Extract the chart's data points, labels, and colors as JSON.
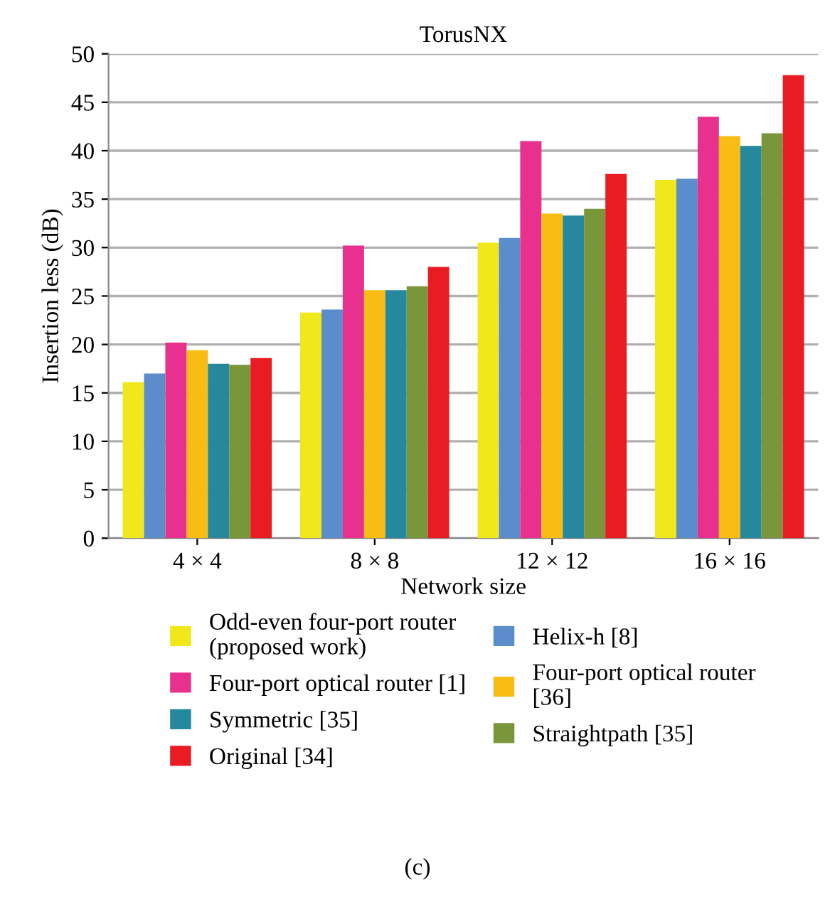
{
  "chart_data": {
    "type": "bar",
    "title": "TorusNX",
    "xlabel": "Network size",
    "ylabel": "Insertion less (dB)",
    "categories": [
      "4 × 4",
      "8 × 8",
      "12 × 12",
      "16 × 16"
    ],
    "series": [
      {
        "name": "Odd-even four-port router\n(proposed work)",
        "color": "#f0e81a",
        "values": [
          16.1,
          23.3,
          30.5,
          37
        ]
      },
      {
        "name": "Helix-h [8]",
        "color": "#5b8ccc",
        "values": [
          17,
          23.6,
          31,
          37.1
        ]
      },
      {
        "name": "Four-port optical router [1]",
        "color": "#e8308f",
        "values": [
          20.2,
          30.2,
          41,
          43.5
        ]
      },
      {
        "name": "Four-port optical router\n[36]",
        "color": "#f9bc15",
        "values": [
          19.4,
          25.6,
          33.5,
          41.5
        ]
      },
      {
        "name": "Symmetric [35]",
        "color": "#25889c",
        "values": [
          18,
          25.6,
          33.3,
          40.5
        ]
      },
      {
        "name": "Straightpath [35]",
        "color": "#7a963a",
        "values": [
          17.9,
          26,
          34,
          41.8
        ]
      },
      {
        "name": "Original [34]",
        "color": "#e91c24",
        "values": [
          18.6,
          28,
          37.6,
          47.8
        ]
      }
    ],
    "ylim": [
      0,
      50
    ],
    "yticks": [
      0,
      5,
      10,
      15,
      20,
      25,
      30,
      35,
      40,
      45,
      50
    ],
    "grid": "y",
    "legend": "bottom",
    "annotations": [
      "(c)"
    ]
  }
}
